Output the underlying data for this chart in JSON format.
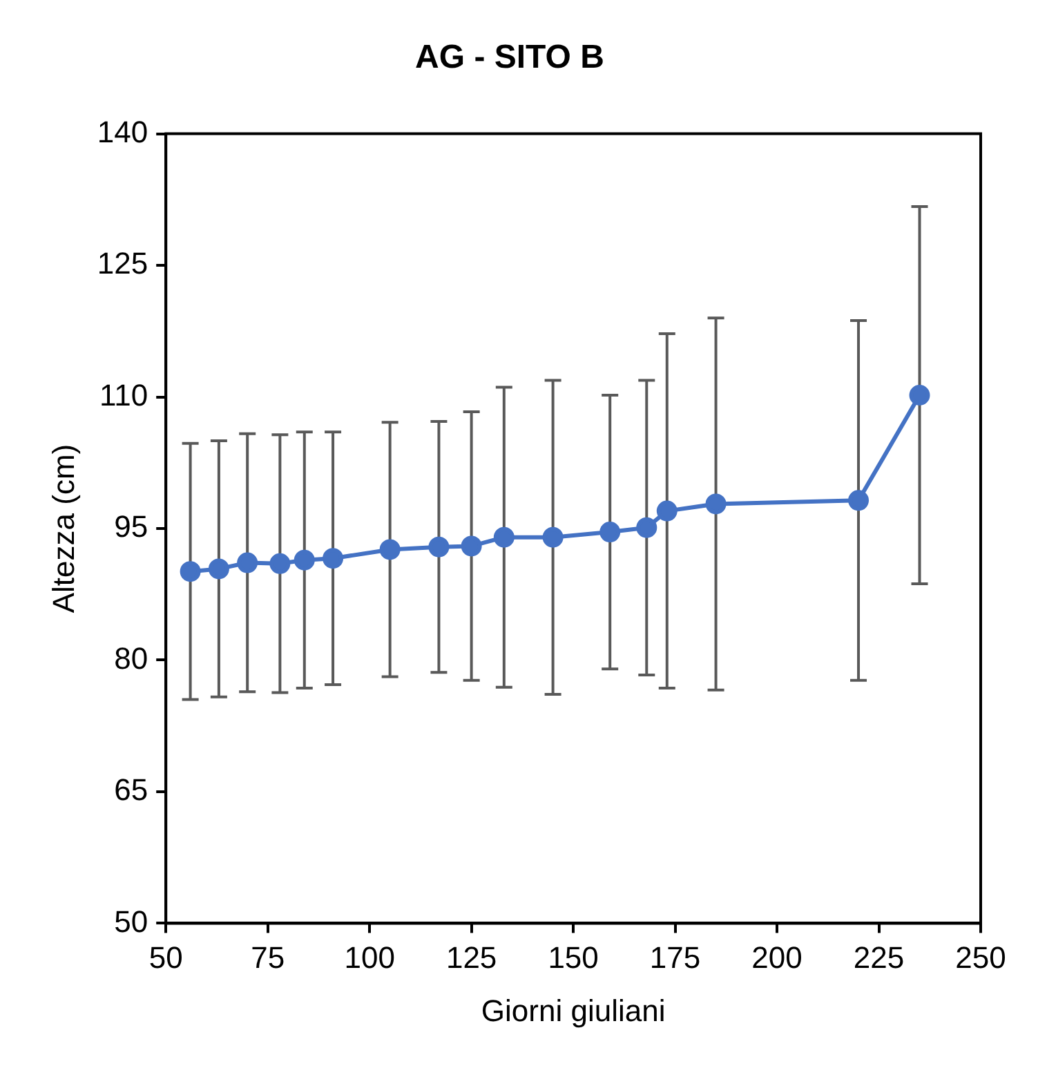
{
  "chart_data": {
    "type": "line",
    "title": "AG - SITO B",
    "xlabel": "Giorni giuliani",
    "ylabel": "Altezza (cm)",
    "x": [
      56,
      63,
      70,
      78,
      84,
      91,
      105,
      117,
      125,
      133,
      145,
      159,
      168,
      173,
      185,
      220,
      235
    ],
    "series": [
      {
        "color": "#4472c4",
        "values": [
          90.1,
          90.4,
          91.1,
          91.0,
          91.4,
          91.6,
          92.6,
          92.9,
          93.0,
          94.0,
          94.0,
          94.6,
          95.1,
          97.0,
          97.8,
          98.2,
          110.2
        ],
        "errors": [
          14.6,
          14.6,
          14.7,
          14.7,
          14.6,
          14.4,
          14.5,
          14.3,
          15.3,
          17.1,
          17.9,
          15.6,
          16.8,
          20.2,
          21.2,
          20.5,
          21.5
        ]
      }
    ],
    "xlim": [
      50,
      250
    ],
    "xticks": [
      50,
      75,
      100,
      125,
      150,
      175,
      200,
      225,
      250
    ],
    "ylim": [
      50,
      140
    ],
    "yticks": [
      50,
      65,
      80,
      95,
      110,
      125,
      140
    ],
    "grid": false,
    "legend": false,
    "marker": "circle",
    "line_style": "solid"
  }
}
